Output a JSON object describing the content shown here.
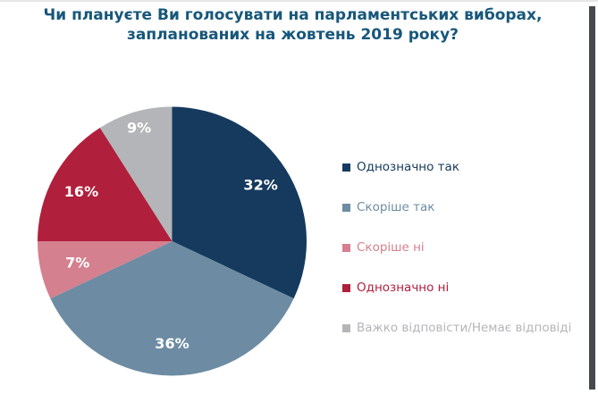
{
  "page": {
    "title": "Чи плануєте Ви голосувати на парламентських виборах, запланованих на жовтень 2019 року?",
    "title_color": "#17577A",
    "background_color": "#FFFFFF",
    "scrollbar_color": "#46494E"
  },
  "chart_data": {
    "type": "pie",
    "title": "Чи плануєте Ви голосувати на парламентських виборах, запланованих на жовтень 2019 року?",
    "start_angle_deg": 0,
    "direction": "clockwise",
    "label_color": "#FFFFFF",
    "legend_position": "right",
    "segments": [
      {
        "label": "Однозначно так",
        "value": 32,
        "display": "32%",
        "color": "#153A5D"
      },
      {
        "label": "Скоріше так",
        "value": 36,
        "display": "36%",
        "color": "#6D8CA3"
      },
      {
        "label": "Скоріше ні",
        "value": 7,
        "display": "7%",
        "color": "#D4808F"
      },
      {
        "label": "Однозначно ні",
        "value": 16,
        "display": "16%",
        "color": "#B01F3C"
      },
      {
        "label": "Важко відповісти/Немає відповіді",
        "value": 9,
        "display": "9%",
        "color": "#B4B5B8"
      }
    ]
  }
}
